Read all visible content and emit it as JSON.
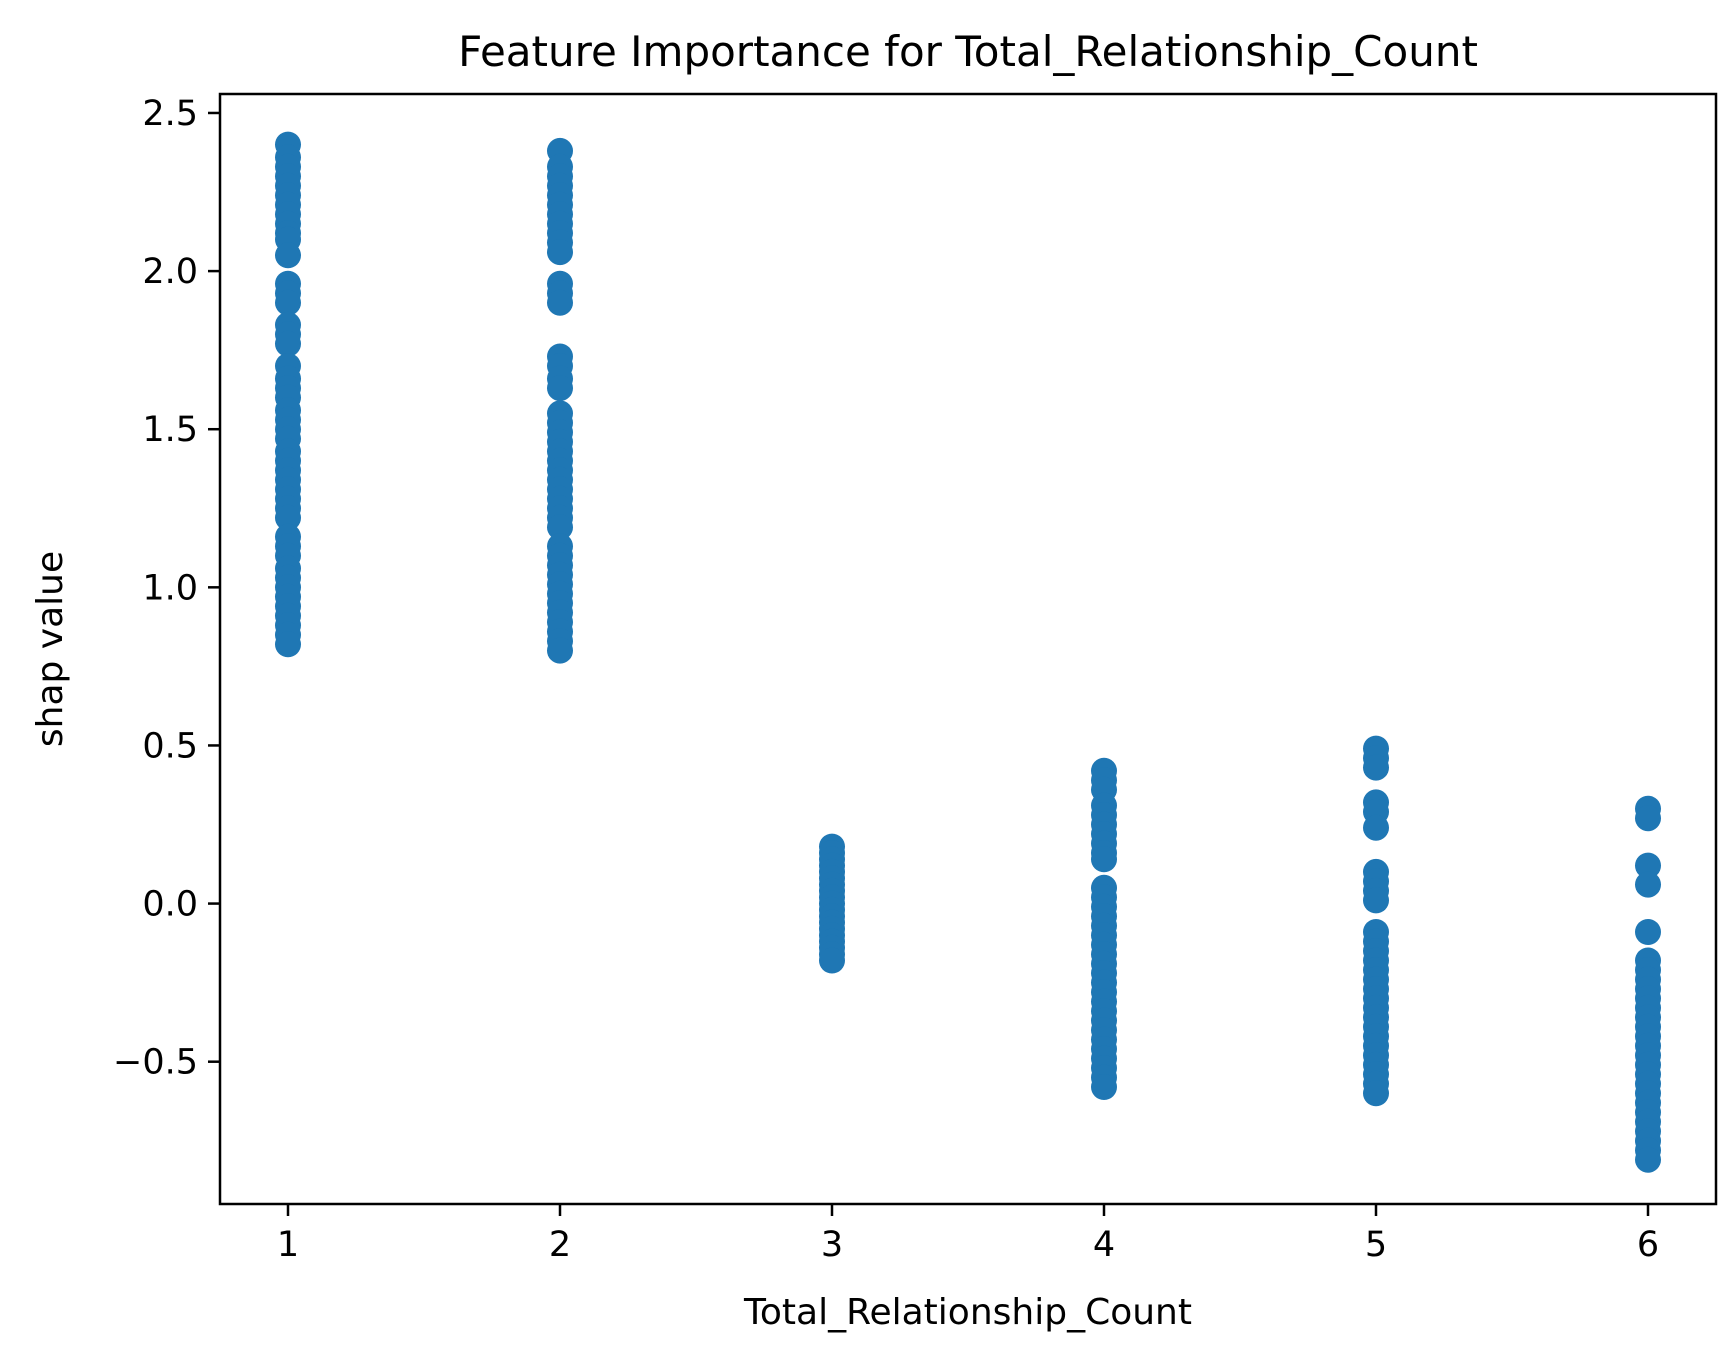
{
  "chart_data": {
    "type": "scatter",
    "title": "Feature Importance for Total_Relationship_Count",
    "xlabel": "Total_Relationship_Count",
    "ylabel": "shap value",
    "xlim": [
      0.75,
      6.25
    ],
    "ylim": [
      -0.95,
      2.56
    ],
    "xticks": [
      1,
      2,
      3,
      4,
      5,
      6
    ],
    "xtick_labels": [
      "1",
      "2",
      "3",
      "4",
      "5",
      "6"
    ],
    "yticks": [
      -0.5,
      0.0,
      0.5,
      1.0,
      1.5,
      2.0,
      2.5
    ],
    "ytick_labels": [
      "−0.5",
      "0.0",
      "0.5",
      "1.0",
      "1.5",
      "2.0",
      "2.5"
    ],
    "grid": false,
    "legend": "none",
    "marker_color": "#1f77b4",
    "series": [
      {
        "points": [
          [
            1,
            2.4
          ],
          [
            1,
            2.36
          ],
          [
            1,
            2.33
          ],
          [
            1,
            2.3
          ],
          [
            1,
            2.27
          ],
          [
            1,
            2.24
          ],
          [
            1,
            2.21
          ],
          [
            1,
            2.18
          ],
          [
            1,
            2.15
          ],
          [
            1,
            2.12
          ],
          [
            1,
            2.1
          ],
          [
            1,
            2.05
          ],
          [
            1,
            1.96
          ],
          [
            1,
            1.93
          ],
          [
            1,
            1.9
          ],
          [
            1,
            1.83
          ],
          [
            1,
            1.8
          ],
          [
            1,
            1.77
          ],
          [
            1,
            1.7
          ],
          [
            1,
            1.66
          ],
          [
            1,
            1.63
          ],
          [
            1,
            1.6
          ],
          [
            1,
            1.56
          ],
          [
            1,
            1.53
          ],
          [
            1,
            1.5
          ],
          [
            1,
            1.47
          ],
          [
            1,
            1.43
          ],
          [
            1,
            1.4
          ],
          [
            1,
            1.37
          ],
          [
            1,
            1.34
          ],
          [
            1,
            1.31
          ],
          [
            1,
            1.28
          ],
          [
            1,
            1.25
          ],
          [
            1,
            1.22
          ],
          [
            1,
            1.16
          ],
          [
            1,
            1.13
          ],
          [
            1,
            1.1
          ],
          [
            1,
            1.06
          ],
          [
            1,
            1.03
          ],
          [
            1,
            1.0
          ],
          [
            1,
            0.97
          ],
          [
            1,
            0.94
          ],
          [
            1,
            0.91
          ],
          [
            1,
            0.88
          ],
          [
            1,
            0.85
          ],
          [
            1,
            0.82
          ]
        ]
      },
      {
        "points": [
          [
            2,
            2.38
          ],
          [
            2,
            2.33
          ],
          [
            2,
            2.3
          ],
          [
            2,
            2.27
          ],
          [
            2,
            2.24
          ],
          [
            2,
            2.21
          ],
          [
            2,
            2.18
          ],
          [
            2,
            2.15
          ],
          [
            2,
            2.12
          ],
          [
            2,
            2.09
          ],
          [
            2,
            2.06
          ],
          [
            2,
            1.96
          ],
          [
            2,
            1.93
          ],
          [
            2,
            1.9
          ],
          [
            2,
            1.73
          ],
          [
            2,
            1.7
          ],
          [
            2,
            1.66
          ],
          [
            2,
            1.63
          ],
          [
            2,
            1.55
          ],
          [
            2,
            1.52
          ],
          [
            2,
            1.49
          ],
          [
            2,
            1.46
          ],
          [
            2,
            1.43
          ],
          [
            2,
            1.4
          ],
          [
            2,
            1.37
          ],
          [
            2,
            1.34
          ],
          [
            2,
            1.31
          ],
          [
            2,
            1.28
          ],
          [
            2,
            1.25
          ],
          [
            2,
            1.22
          ],
          [
            2,
            1.19
          ],
          [
            2,
            1.13
          ],
          [
            2,
            1.1
          ],
          [
            2,
            1.07
          ],
          [
            2,
            1.04
          ],
          [
            2,
            1.01
          ],
          [
            2,
            0.98
          ],
          [
            2,
            0.95
          ],
          [
            2,
            0.92
          ],
          [
            2,
            0.89
          ],
          [
            2,
            0.86
          ],
          [
            2,
            0.83
          ],
          [
            2,
            0.8
          ]
        ]
      },
      {
        "points": [
          [
            3,
            0.18
          ],
          [
            3,
            0.16
          ],
          [
            3,
            0.14
          ],
          [
            3,
            0.12
          ],
          [
            3,
            0.1
          ],
          [
            3,
            0.08
          ],
          [
            3,
            0.06
          ],
          [
            3,
            0.04
          ],
          [
            3,
            0.02
          ],
          [
            3,
            0.0
          ],
          [
            3,
            -0.02
          ],
          [
            3,
            -0.04
          ],
          [
            3,
            -0.06
          ],
          [
            3,
            -0.08
          ],
          [
            3,
            -0.1
          ],
          [
            3,
            -0.12
          ],
          [
            3,
            -0.14
          ],
          [
            3,
            -0.16
          ],
          [
            3,
            -0.18
          ]
        ]
      },
      {
        "points": [
          [
            4,
            0.42
          ],
          [
            4,
            0.39
          ],
          [
            4,
            0.36
          ],
          [
            4,
            0.31
          ],
          [
            4,
            0.28
          ],
          [
            4,
            0.25
          ],
          [
            4,
            0.22
          ],
          [
            4,
            0.19
          ],
          [
            4,
            0.16
          ],
          [
            4,
            0.14
          ],
          [
            4,
            0.05
          ],
          [
            4,
            0.02
          ],
          [
            4,
            -0.01
          ],
          [
            4,
            -0.04
          ],
          [
            4,
            -0.07
          ],
          [
            4,
            -0.1
          ],
          [
            4,
            -0.13
          ],
          [
            4,
            -0.16
          ],
          [
            4,
            -0.19
          ],
          [
            4,
            -0.22
          ],
          [
            4,
            -0.25
          ],
          [
            4,
            -0.28
          ],
          [
            4,
            -0.31
          ],
          [
            4,
            -0.34
          ],
          [
            4,
            -0.37
          ],
          [
            4,
            -0.4
          ],
          [
            4,
            -0.43
          ],
          [
            4,
            -0.46
          ],
          [
            4,
            -0.49
          ],
          [
            4,
            -0.52
          ],
          [
            4,
            -0.55
          ],
          [
            4,
            -0.58
          ]
        ]
      },
      {
        "points": [
          [
            5,
            0.49
          ],
          [
            5,
            0.46
          ],
          [
            5,
            0.43
          ],
          [
            5,
            0.32
          ],
          [
            5,
            0.29
          ],
          [
            5,
            0.24
          ],
          [
            5,
            0.1
          ],
          [
            5,
            0.07
          ],
          [
            5,
            0.04
          ],
          [
            5,
            0.01
          ],
          [
            5,
            -0.09
          ],
          [
            5,
            -0.12
          ],
          [
            5,
            -0.15
          ],
          [
            5,
            -0.18
          ],
          [
            5,
            -0.21
          ],
          [
            5,
            -0.24
          ],
          [
            5,
            -0.27
          ],
          [
            5,
            -0.3
          ],
          [
            5,
            -0.33
          ],
          [
            5,
            -0.36
          ],
          [
            5,
            -0.39
          ],
          [
            5,
            -0.42
          ],
          [
            5,
            -0.45
          ],
          [
            5,
            -0.48
          ],
          [
            5,
            -0.51
          ],
          [
            5,
            -0.54
          ],
          [
            5,
            -0.57
          ],
          [
            5,
            -0.6
          ]
        ]
      },
      {
        "points": [
          [
            6,
            0.3
          ],
          [
            6,
            0.27
          ],
          [
            6,
            0.12
          ],
          [
            6,
            0.06
          ],
          [
            6,
            -0.09
          ],
          [
            6,
            -0.18
          ],
          [
            6,
            -0.21
          ],
          [
            6,
            -0.24
          ],
          [
            6,
            -0.27
          ],
          [
            6,
            -0.3
          ],
          [
            6,
            -0.33
          ],
          [
            6,
            -0.36
          ],
          [
            6,
            -0.39
          ],
          [
            6,
            -0.42
          ],
          [
            6,
            -0.45
          ],
          [
            6,
            -0.48
          ],
          [
            6,
            -0.51
          ],
          [
            6,
            -0.54
          ],
          [
            6,
            -0.57
          ],
          [
            6,
            -0.6
          ],
          [
            6,
            -0.63
          ],
          [
            6,
            -0.66
          ],
          [
            6,
            -0.69
          ],
          [
            6,
            -0.72
          ],
          [
            6,
            -0.75
          ],
          [
            6,
            -0.78
          ],
          [
            6,
            -0.81
          ]
        ]
      }
    ]
  }
}
